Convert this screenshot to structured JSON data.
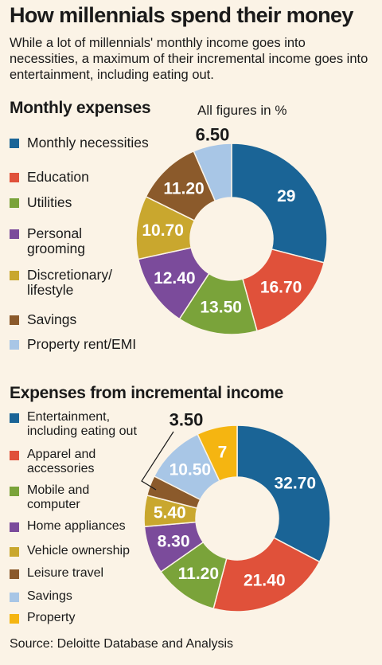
{
  "title": "How millennials spend their money",
  "subtitle": "While a lot of millennials' monthly income goes into necessities, a maximum  of their incremental income goes into entertainment, including eating out.",
  "note": "All figures in %",
  "source": "Source: Deloitte Database and Analysis",
  "colors": {
    "background": "#fbf3e6",
    "blue": "#1a6496",
    "red": "#e0513a",
    "green": "#7aa33a",
    "purple": "#7b4b9b",
    "mustard": "#c9a72e",
    "brown": "#8b5a2b",
    "light_blue": "#a8c6e6",
    "yellow": "#f5b511"
  },
  "chart_data": [
    {
      "type": "pie",
      "donut": true,
      "title": "Monthly expenses",
      "categories": [
        "Monthly necessities",
        "Education",
        "Utilities",
        "Personal\ngrooming",
        "Discretionary/\nlifestyle",
        "Savings",
        "Property rent/EMI"
      ],
      "values": [
        29,
        16.7,
        13.5,
        12.4,
        10.7,
        11.2,
        6.5
      ],
      "value_labels": [
        "29",
        "16.70",
        "13.50",
        "12.40",
        "10.70",
        "11.20",
        "6.50"
      ],
      "colors": [
        "#1a6496",
        "#e0513a",
        "#7aa33a",
        "#7b4b9b",
        "#c9a72e",
        "#8b5a2b",
        "#a8c6e6"
      ],
      "legend_position": "left"
    },
    {
      "type": "pie",
      "donut": true,
      "title": "Expenses from incremental income",
      "categories": [
        "Entertainment,\nincluding eating out",
        "Apparel and\naccessories",
        "Mobile and\ncomputer",
        "Home appliances",
        "Vehicle ownership",
        "Leisure travel",
        "Savings",
        "Property"
      ],
      "values": [
        32.7,
        21.4,
        11.2,
        8.3,
        5.4,
        3.5,
        10.5,
        7
      ],
      "value_labels": [
        "32.70",
        "21.40",
        "11.20",
        "8.30",
        "5.40",
        "3.50",
        "10.50",
        "7"
      ],
      "colors": [
        "#1a6496",
        "#e0513a",
        "#7aa33a",
        "#7b4b9b",
        "#c9a72e",
        "#8b5a2b",
        "#a8c6e6",
        "#f5b511"
      ],
      "legend_position": "left"
    }
  ]
}
